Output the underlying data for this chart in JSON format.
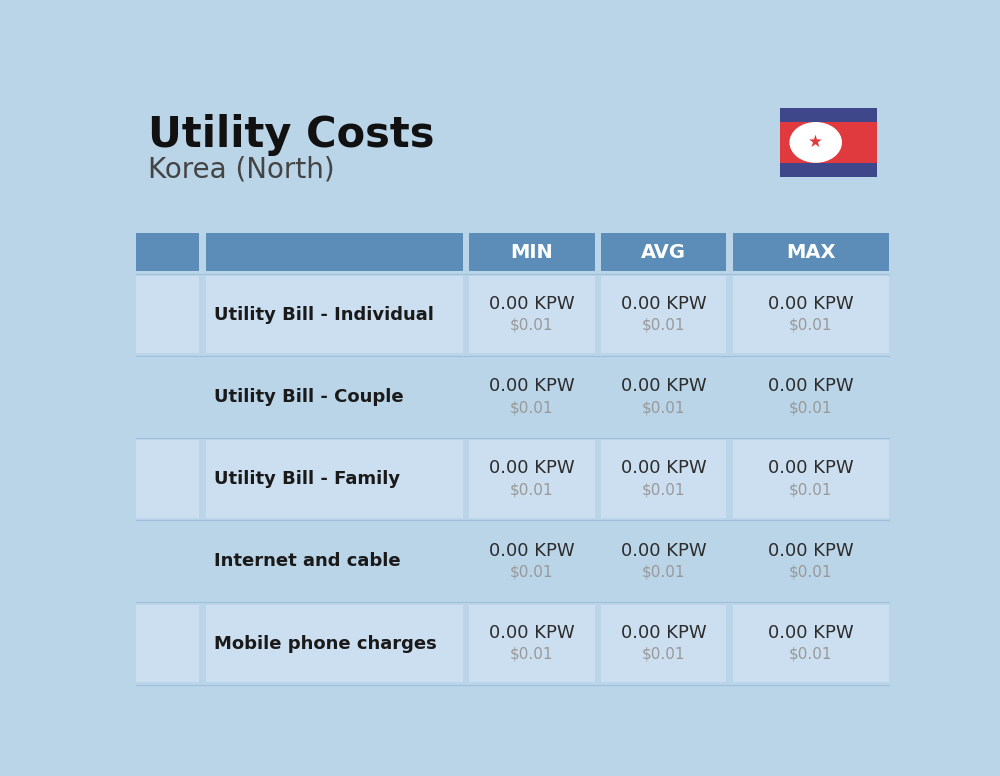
{
  "title": "Utility Costs",
  "subtitle": "Korea (North)",
  "bg_color": "#bad4e8",
  "header_bg_color": "#5b8db8",
  "header_text_color": "#ffffff",
  "col_header_labels": [
    "MIN",
    "AVG",
    "MAX"
  ],
  "rows": [
    {
      "label": "Utility Bill - Individual",
      "min_kpw": "0.00 KPW",
      "min_usd": "$0.01",
      "avg_kpw": "0.00 KPW",
      "avg_usd": "$0.01",
      "max_kpw": "0.00 KPW",
      "max_usd": "$0.01"
    },
    {
      "label": "Utility Bill - Couple",
      "min_kpw": "0.00 KPW",
      "min_usd": "$0.01",
      "avg_kpw": "0.00 KPW",
      "avg_usd": "$0.01",
      "max_kpw": "0.00 KPW",
      "max_usd": "$0.01"
    },
    {
      "label": "Utility Bill - Family",
      "min_kpw": "0.00 KPW",
      "min_usd": "$0.01",
      "avg_kpw": "0.00 KPW",
      "avg_usd": "$0.01",
      "max_kpw": "0.00 KPW",
      "max_usd": "$0.01"
    },
    {
      "label": "Internet and cable",
      "min_kpw": "0.00 KPW",
      "min_usd": "$0.01",
      "avg_kpw": "0.00 KPW",
      "avg_usd": "$0.01",
      "max_kpw": "0.00 KPW",
      "max_usd": "$0.01"
    },
    {
      "label": "Mobile phone charges",
      "min_kpw": "0.00 KPW",
      "min_usd": "$0.01",
      "avg_kpw": "0.00 KPW",
      "avg_usd": "$0.01",
      "max_kpw": "0.00 KPW",
      "max_usd": "$0.01"
    }
  ],
  "kpw_color": "#2d2d2d",
  "usd_color": "#999999",
  "label_color": "#1a1a1a",
  "title_color": "#111111",
  "subtitle_color": "#444444",
  "flag_blue": "#3d478a",
  "flag_red": "#e03a3e",
  "flag_white": "#ffffff"
}
